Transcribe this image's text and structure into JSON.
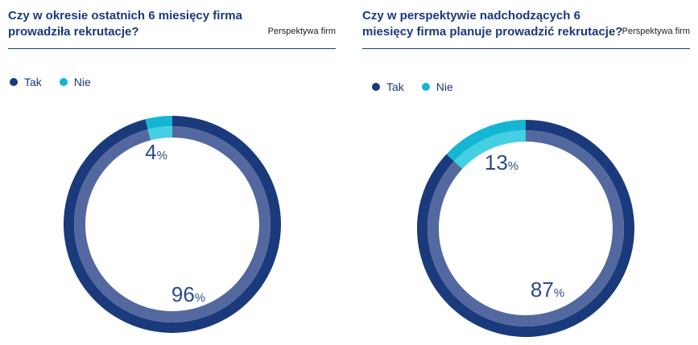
{
  "colors": {
    "tak_outer": "#1a3a7c",
    "tak_inner": "#5468a0",
    "nie_outer": "#14b6d3",
    "nie_inner": "#45cfe2",
    "text": "#1a3a7c"
  },
  "chart_data": [
    {
      "type": "pie",
      "title": "Czy w okresie ostatnich 6 miesięcy firma prowadziła rekrutacje?",
      "subtitle": "Perspektywa firm",
      "legend": [
        "Tak",
        "Nie"
      ],
      "legend_position": "top-left",
      "categories": [
        "Tak",
        "Nie"
      ],
      "values": [
        96,
        4
      ],
      "labels": {
        "tak": "96",
        "nie": "4",
        "unit": "%"
      }
    },
    {
      "type": "pie",
      "title": "Czy w perspektywie nadchodzących 6 miesięcy firma planuje prowadzić rekrutacje?",
      "subtitle": "Perspektywa firm",
      "legend": [
        "Tak",
        "Nie"
      ],
      "legend_position": "top-left",
      "categories": [
        "Tak",
        "Nie"
      ],
      "values": [
        87,
        13
      ],
      "labels": {
        "tak": "87",
        "nie": "13",
        "unit": "%"
      }
    }
  ]
}
